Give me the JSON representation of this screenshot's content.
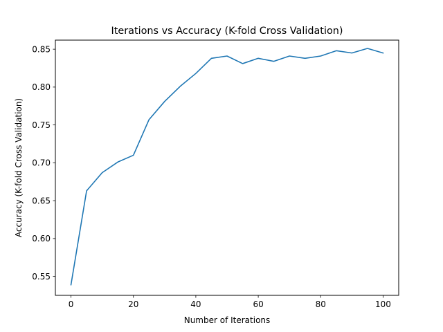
{
  "chart_data": {
    "type": "line",
    "title": "Iterations vs Accuracy (K-fold Cross Validation)",
    "xlabel": "Number of Iterations",
    "ylabel": "Accuracy (K-fold Cross Validation)",
    "xlim": [
      -5,
      105
    ],
    "ylim": [
      0.525,
      0.862
    ],
    "xticks": [
      0,
      20,
      40,
      60,
      80,
      100
    ],
    "yticks": [
      0.55,
      0.6,
      0.65,
      0.7,
      0.75,
      0.8,
      0.85
    ],
    "ytick_labels": [
      "0.55",
      "0.60",
      "0.65",
      "0.70",
      "0.75",
      "0.80",
      "0.85"
    ],
    "grid": false,
    "series": [
      {
        "color": "#1f77b4",
        "x": [
          0,
          5,
          10,
          15,
          20,
          25,
          30,
          35,
          40,
          45,
          50,
          55,
          60,
          65,
          70,
          75,
          80,
          85,
          90,
          95,
          100
        ],
        "y": [
          0.539,
          0.663,
          0.687,
          0.701,
          0.71,
          0.757,
          0.781,
          0.801,
          0.818,
          0.838,
          0.841,
          0.831,
          0.838,
          0.834,
          0.841,
          0.838,
          0.841,
          0.848,
          0.845,
          0.851,
          0.845
        ]
      }
    ]
  }
}
